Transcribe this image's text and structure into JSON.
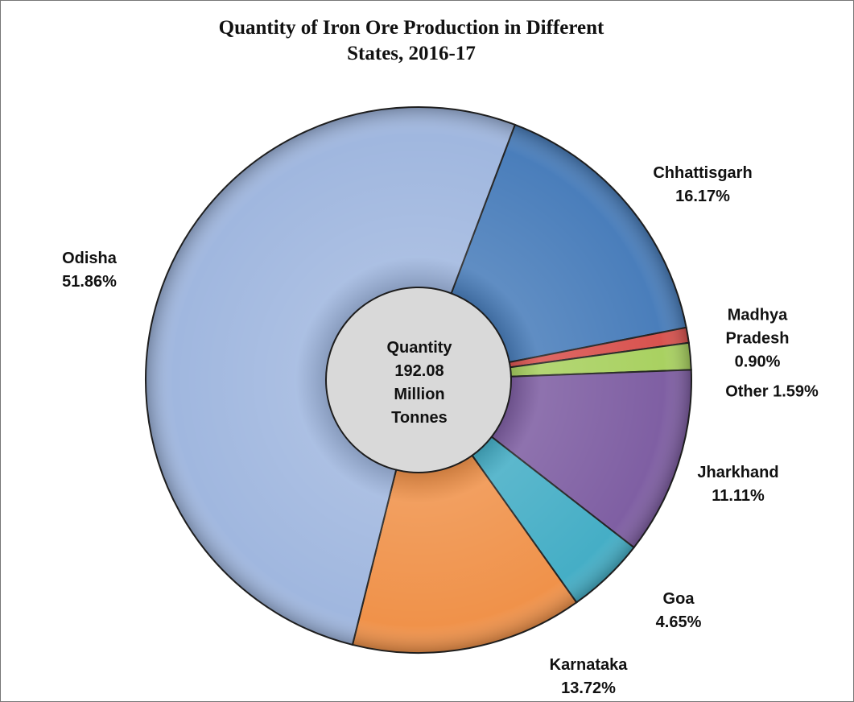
{
  "chart_data": {
    "type": "donut",
    "title": "Quantity of Iron Ore Production in Different States, 2016-17",
    "categories": [
      "Chhattisgarh",
      "Madhya Pradesh",
      "Other",
      "Jharkhand",
      "Goa",
      "Karnataka",
      "Odisha"
    ],
    "values": [
      16.17,
      0.9,
      1.59,
      11.11,
      4.65,
      13.72,
      51.86
    ],
    "value_labels": [
      "16.17%",
      "0.90%",
      "1.59%",
      "11.11%",
      "4.65%",
      "13.72%",
      "51.86%"
    ],
    "colors": [
      "#4a7ebb",
      "#d9534f",
      "#a9d161",
      "#7f5fa3",
      "#45aec6",
      "#f0924a",
      "#a0b7df"
    ],
    "center_text": [
      "Quantity",
      "192.08",
      "Million",
      "Tonnes"
    ]
  }
}
